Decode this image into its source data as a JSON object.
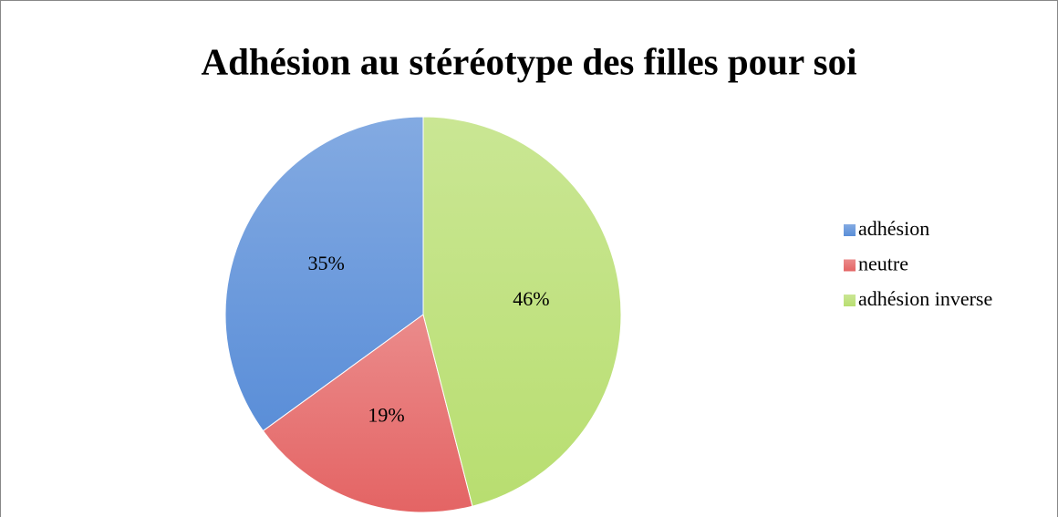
{
  "chart_data": {
    "type": "pie",
    "title": "Adhésion au stéréotype des filles pour soi",
    "categories": [
      "adhésion",
      "neutre",
      "adhésion inverse"
    ],
    "values": [
      35,
      19,
      46
    ],
    "value_labels": [
      "35%",
      "19%",
      "46%"
    ],
    "colors": [
      "#5a8ed8",
      "#e46464",
      "#b8de70"
    ],
    "legend": "right"
  }
}
